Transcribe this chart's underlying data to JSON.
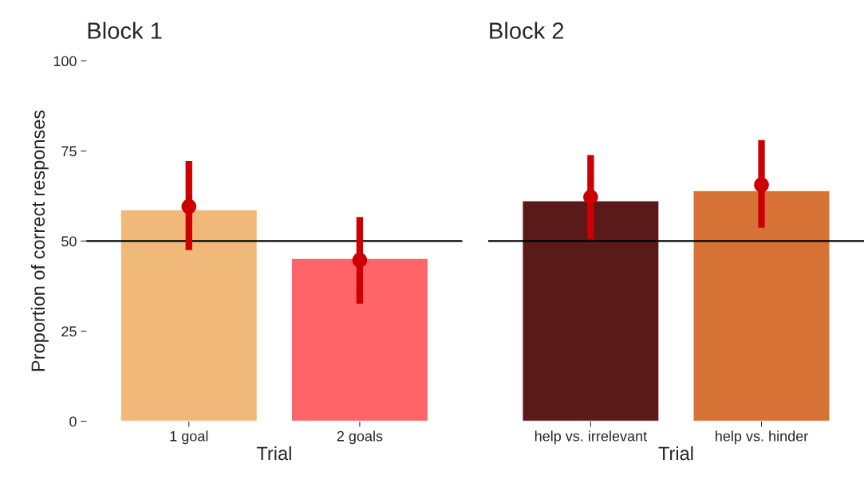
{
  "chart_data": [
    {
      "type": "bar",
      "title": "Block 1",
      "xlabel": "Trial",
      "ylabel": "Proportion of correct responses",
      "categories": [
        "1 goal",
        "2 goals"
      ],
      "series": [
        {
          "colors": [
            "#f0b97a",
            "#ff6468"
          ],
          "values": [
            58.7,
            45.2
          ]
        },
        {
          "type": "scatter",
          "color": "#cc0000",
          "values": [
            59.6,
            44.7
          ],
          "errors": [
            [
              47.5,
              72.2
            ],
            [
              32.6,
              56.7
            ]
          ]
        }
      ],
      "ylim": [
        0,
        100
      ],
      "yticks": [
        0,
        25,
        50,
        75,
        100
      ],
      "ref_lines": [
        {
          "axis": "y",
          "value": 50,
          "color": "#000000"
        }
      ],
      "grid": false,
      "legend": false
    },
    {
      "type": "bar",
      "title": "Block 2",
      "xlabel": "Trial",
      "categories": [
        "help vs. irrelevant",
        "help vs. hinder"
      ],
      "series": [
        {
          "colors": [
            "#5a1a1a",
            "#d67236"
          ],
          "values": [
            61.2,
            64.0
          ]
        },
        {
          "type": "scatter",
          "color": "#cc0000",
          "values": [
            62.2,
            65.6
          ],
          "errors": [
            [
              50.5,
              73.9
            ],
            [
              53.7,
              78.0
            ]
          ]
        }
      ],
      "ylim": [
        0,
        100
      ],
      "yticks": [
        0,
        25,
        50,
        75,
        100
      ],
      "tick_labels": "x",
      "ref_lines": [
        {
          "axis": "y",
          "value": 50,
          "color": "#000000"
        }
      ],
      "grid": false,
      "legend": false
    }
  ]
}
